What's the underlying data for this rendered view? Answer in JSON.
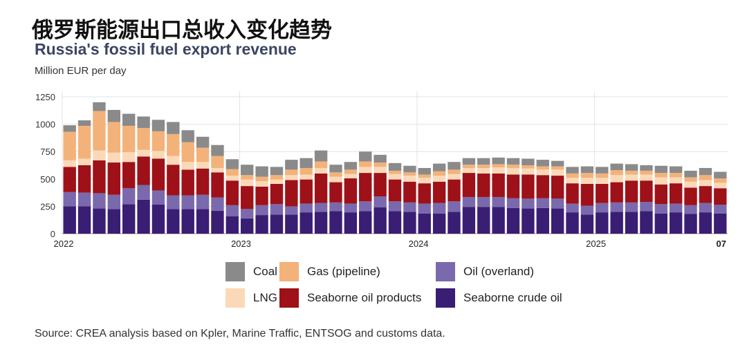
{
  "titles": {
    "cn": "俄罗斯能源出口总收入变化趋势",
    "en": "Russia's fossil fuel export revenue",
    "unit": "Million EUR per day"
  },
  "source": "Source: CREA analysis based on Kpler, Marine Traffic, ENTSOG and customs data.",
  "colors": {
    "coal": "#8a8a8a",
    "gas_pipeline": "#f3b27a",
    "oil_overland": "#7b69ad",
    "lng": "#fbd9b8",
    "seaborne_oil_products": "#9e1118",
    "seaborne_crude_oil": "#3a1e73"
  },
  "chart_data": {
    "type": "bar",
    "stacked": true,
    "ylabel": "Million EUR per day",
    "ylim": [
      0,
      1250
    ],
    "yticks": [
      0,
      250,
      500,
      750,
      1000,
      1250
    ],
    "grid": true,
    "x_ticks": [
      {
        "label": "2022",
        "index": 0
      },
      {
        "label": "2023",
        "index": 12
      },
      {
        "label": "2024",
        "index": 24
      },
      {
        "label": "2025",
        "index": 36
      },
      {
        "label": "07",
        "index": 42
      }
    ],
    "legend_placement": "bottom",
    "series": [
      {
        "name": "Seaborne crude oil",
        "key": "seaborne_crude_oil",
        "values": [
          250,
          250,
          230,
          225,
          270,
          310,
          265,
          225,
          225,
          225,
          210,
          160,
          140,
          170,
          175,
          175,
          195,
          200,
          205,
          195,
          205,
          240,
          205,
          200,
          185,
          185,
          200,
          245,
          245,
          245,
          235,
          230,
          235,
          230,
          195,
          175,
          195,
          200,
          200,
          205,
          185,
          195,
          180,
          195,
          185
        ]
      },
      {
        "name": "Oil (overland)",
        "key": "oil_overland",
        "values": [
          130,
          125,
          140,
          130,
          145,
          135,
          130,
          125,
          125,
          130,
          120,
          100,
          85,
          90,
          95,
          75,
          80,
          80,
          80,
          80,
          90,
          100,
          90,
          85,
          90,
          95,
          95,
          90,
          90,
          90,
          90,
          90,
          90,
          90,
          80,
          80,
          85,
          85,
          85,
          85,
          85,
          80,
          80,
          85,
          80
        ]
      },
      {
        "name": "Seaborne oil products",
        "key": "seaborne_oil_products",
        "values": [
          230,
          250,
          300,
          295,
          240,
          260,
          290,
          280,
          235,
          240,
          230,
          225,
          210,
          170,
          185,
          240,
          220,
          270,
          185,
          230,
          260,
          215,
          200,
          190,
          185,
          195,
          200,
          220,
          215,
          215,
          215,
          220,
          210,
          210,
          185,
          200,
          175,
          185,
          200,
          195,
          180,
          185,
          160,
          155,
          150
        ]
      },
      {
        "name": "LNG",
        "key": "lng",
        "values": [
          60,
          60,
          90,
          90,
          90,
          60,
          70,
          80,
          70,
          60,
          40,
          45,
          60,
          50,
          40,
          45,
          45,
          50,
          50,
          40,
          55,
          55,
          50,
          55,
          50,
          55,
          50,
          45,
          50,
          55,
          60,
          55,
          50,
          55,
          50,
          55,
          55,
          65,
          55,
          55,
          65,
          55,
          55,
          55,
          50
        ]
      },
      {
        "name": "Gas (pipeline)",
        "key": "gas_pipeline",
        "values": [
          260,
          300,
          360,
          280,
          240,
          200,
          180,
          200,
          180,
          130,
          110,
          60,
          40,
          40,
          40,
          50,
          60,
          60,
          40,
          40,
          50,
          40,
          30,
          30,
          30,
          40,
          40,
          30,
          30,
          30,
          30,
          30,
          30,
          30,
          40,
          45,
          40,
          45,
          35,
          35,
          40,
          40,
          40,
          45,
          40
        ]
      },
      {
        "name": "Coal",
        "key": "coal",
        "values": [
          60,
          50,
          80,
          110,
          110,
          105,
          105,
          110,
          110,
          100,
          100,
          90,
          95,
          95,
          75,
          90,
          90,
          100,
          70,
          70,
          90,
          70,
          70,
          60,
          60,
          70,
          70,
          60,
          60,
          60,
          60,
          60,
          60,
          50,
          60,
          60,
          60,
          60,
          60,
          50,
          65,
          60,
          60,
          65,
          60
        ]
      }
    ]
  },
  "legend": {
    "items": [
      {
        "label": "Coal",
        "key": "coal"
      },
      {
        "label": "Gas (pipeline)",
        "key": "gas_pipeline"
      },
      {
        "label": "Oil (overland)",
        "key": "oil_overland"
      },
      {
        "label": "LNG",
        "key": "lng"
      },
      {
        "label": "Seaborne oil products",
        "key": "seaborne_oil_products"
      },
      {
        "label": "Seaborne crude oil",
        "key": "seaborne_crude_oil"
      }
    ]
  }
}
